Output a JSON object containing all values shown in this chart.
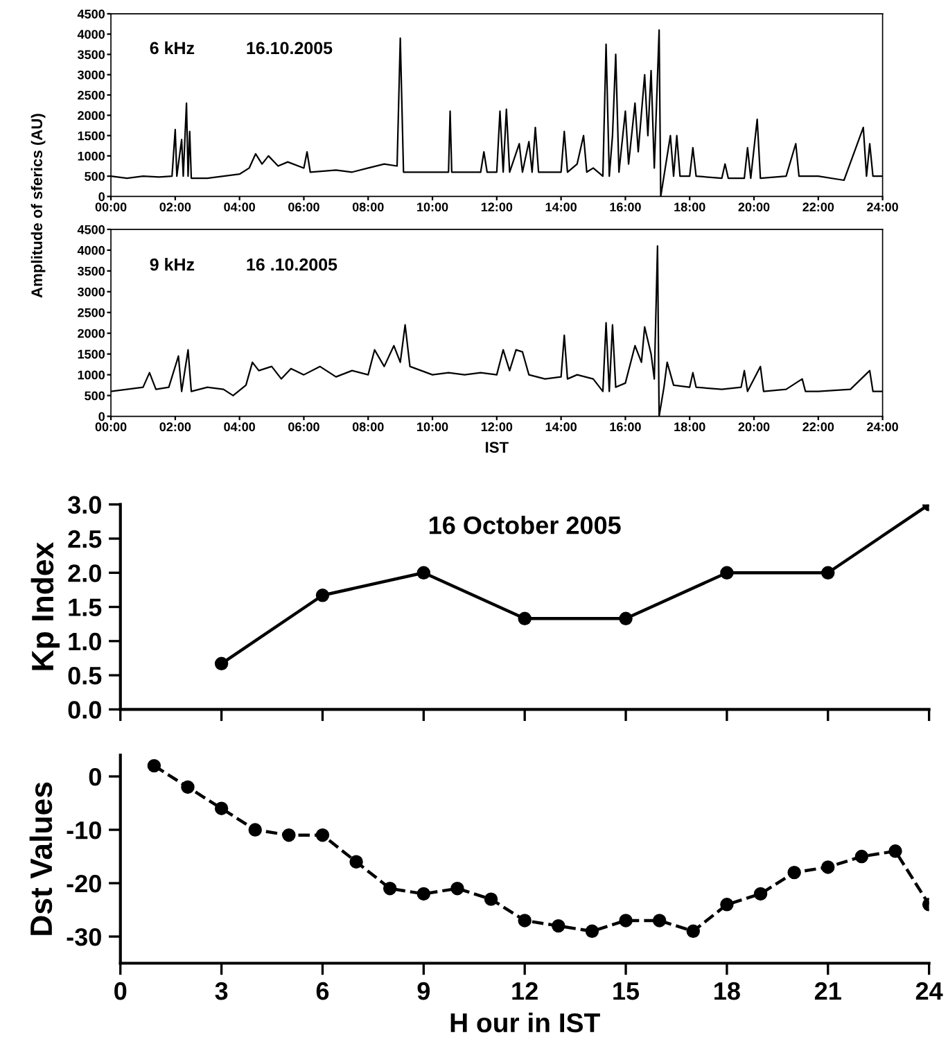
{
  "chart_data": [
    {
      "type": "line",
      "ylabel": "Amplitude of sferics (AU)",
      "annotations": [
        "6 kHz",
        "16.10.2005"
      ],
      "marker": "none",
      "line_style": "solid",
      "color": "#000000",
      "x": [
        "2005-10-16T00:00",
        "2005-10-16T00:30",
        "2005-10-16T01:00",
        "2005-10-16T01:30",
        "2005-10-16T01:54",
        "2005-10-16T02:00",
        "2005-10-16T02:03",
        "2005-10-16T02:12",
        "2005-10-16T02:15",
        "2005-10-16T02:21",
        "2005-10-16T02:24",
        "2005-10-16T02:27",
        "2005-10-16T02:30",
        "2005-10-16T03:00",
        "2005-10-16T03:30",
        "2005-10-16T04:00",
        "2005-10-16T04:18",
        "2005-10-16T04:30",
        "2005-10-16T04:42",
        "2005-10-16T04:54",
        "2005-10-16T05:12",
        "2005-10-16T05:30",
        "2005-10-16T06:00",
        "2005-10-16T06:06",
        "2005-10-16T06:12",
        "2005-10-16T07:00",
        "2005-10-16T07:30",
        "2005-10-16T08:00",
        "2005-10-16T08:30",
        "2005-10-16T08:54",
        "2005-10-16T09:00",
        "2005-10-16T09:06",
        "2005-10-16T10:00",
        "2005-10-16T10:30",
        "2005-10-16T10:33",
        "2005-10-16T10:36",
        "2005-10-16T11:30",
        "2005-10-16T11:36",
        "2005-10-16T11:42",
        "2005-10-16T12:00",
        "2005-10-16T12:06",
        "2005-10-16T12:12",
        "2005-10-16T12:18",
        "2005-10-16T12:24",
        "2005-10-16T12:42",
        "2005-10-16T12:48",
        "2005-10-16T13:00",
        "2005-10-16T13:06",
        "2005-10-16T13:12",
        "2005-10-16T13:18",
        "2005-10-16T14:00",
        "2005-10-16T14:06",
        "2005-10-16T14:12",
        "2005-10-16T14:30",
        "2005-10-16T14:42",
        "2005-10-16T14:48",
        "2005-10-16T15:00",
        "2005-10-16T15:18",
        "2005-10-16T15:24",
        "2005-10-16T15:30",
        "2005-10-16T15:36",
        "2005-10-16T15:42",
        "2005-10-16T15:48",
        "2005-10-16T16:00",
        "2005-10-16T16:06",
        "2005-10-16T16:18",
        "2005-10-16T16:24",
        "2005-10-16T16:36",
        "2005-10-16T16:42",
        "2005-10-16T16:48",
        "2005-10-16T16:54",
        "2005-10-16T17:03",
        "2005-10-16T17:06",
        "2005-10-16T17:12",
        "2005-10-16T17:24",
        "2005-10-16T17:30",
        "2005-10-16T17:36",
        "2005-10-16T17:42",
        "2005-10-16T18:00",
        "2005-10-16T18:06",
        "2005-10-16T18:12",
        "2005-10-16T19:00",
        "2005-10-16T19:06",
        "2005-10-16T19:12",
        "2005-10-16T19:42",
        "2005-10-16T19:48",
        "2005-10-16T19:54",
        "2005-10-16T20:06",
        "2005-10-16T20:12",
        "2005-10-16T21:00",
        "2005-10-16T21:18",
        "2005-10-16T21:24",
        "2005-10-16T22:00",
        "2005-10-16T22:48",
        "2005-10-16T23:24",
        "2005-10-16T23:30",
        "2005-10-16T23:36",
        "2005-10-16T23:42",
        "2005-10-17T00:00"
      ],
      "values": [
        500,
        450,
        500,
        480,
        500,
        1650,
        500,
        1400,
        500,
        2300,
        500,
        1600,
        450,
        450,
        500,
        550,
        700,
        1050,
        800,
        1000,
        750,
        850,
        700,
        1100,
        600,
        650,
        600,
        700,
        800,
        750,
        3900,
        600,
        600,
        600,
        2100,
        600,
        600,
        1100,
        600,
        600,
        2100,
        600,
        2150,
        600,
        1300,
        600,
        1350,
        600,
        1700,
        600,
        600,
        1600,
        600,
        800,
        1500,
        600,
        700,
        500,
        3750,
        500,
        1500,
        3500,
        600,
        2100,
        800,
        2300,
        1100,
        3000,
        1500,
        3100,
        700,
        4100,
        0,
        500,
        1500,
        500,
        1500,
        500,
        500,
        1200,
        500,
        450,
        800,
        450,
        450,
        1200,
        450,
        1900,
        450,
        500,
        1300,
        500,
        500,
        400,
        1700,
        500,
        1300,
        500,
        500
      ],
      "xlim": [
        "2005-10-16T00:00",
        "2005-10-17T00:00"
      ],
      "ylim": [
        0,
        4500
      ],
      "xticks": [
        {
          "value": "2005-10-16T00:00",
          "label": "00:00"
        },
        {
          "value": "2005-10-16T02:00",
          "label": "02:00"
        },
        {
          "value": "2005-10-16T04:00",
          "label": "04:00"
        },
        {
          "value": "2005-10-16T06:00",
          "label": "06:00"
        },
        {
          "value": "2005-10-16T08:00",
          "label": "08:00"
        },
        {
          "value": "2005-10-16T10:00",
          "label": "10:00"
        },
        {
          "value": "2005-10-16T12:00",
          "label": "12:00"
        },
        {
          "value": "2005-10-16T14:00",
          "label": "14:00"
        },
        {
          "value": "2005-10-16T16:00",
          "label": "16:00"
        },
        {
          "value": "2005-10-16T18:00",
          "label": "18:00"
        },
        {
          "value": "2005-10-16T20:00",
          "label": "20:00"
        },
        {
          "value": "2005-10-16T22:00",
          "label": "22:00"
        },
        {
          "value": "2005-10-17T00:00",
          "label": "24:00"
        }
      ],
      "yticks": [
        0,
        500,
        1000,
        1500,
        2000,
        2500,
        3000,
        3500,
        4000,
        4500
      ]
    },
    {
      "type": "line",
      "xlabel": "IST",
      "annotations": [
        "9 kHz",
        "16 .10.2005"
      ],
      "marker": "none",
      "line_style": "solid",
      "color": "#000000",
      "x": [
        "2005-10-16T00:00",
        "2005-10-16T00:30",
        "2005-10-16T01:00",
        "2005-10-16T01:12",
        "2005-10-16T01:24",
        "2005-10-16T01:48",
        "2005-10-16T02:06",
        "2005-10-16T02:12",
        "2005-10-16T02:24",
        "2005-10-16T02:30",
        "2005-10-16T03:00",
        "2005-10-16T03:30",
        "2005-10-16T03:48",
        "2005-10-16T04:12",
        "2005-10-16T04:24",
        "2005-10-16T04:36",
        "2005-10-16T05:00",
        "2005-10-16T05:18",
        "2005-10-16T05:36",
        "2005-10-16T06:00",
        "2005-10-16T06:30",
        "2005-10-16T07:00",
        "2005-10-16T07:30",
        "2005-10-16T08:00",
        "2005-10-16T08:12",
        "2005-10-16T08:30",
        "2005-10-16T08:48",
        "2005-10-16T09:00",
        "2005-10-16T09:09",
        "2005-10-16T09:18",
        "2005-10-16T10:00",
        "2005-10-16T10:30",
        "2005-10-16T11:00",
        "2005-10-16T11:30",
        "2005-10-16T12:00",
        "2005-10-16T12:12",
        "2005-10-16T12:24",
        "2005-10-16T12:36",
        "2005-10-16T12:48",
        "2005-10-16T13:00",
        "2005-10-16T13:30",
        "2005-10-16T14:00",
        "2005-10-16T14:06",
        "2005-10-16T14:12",
        "2005-10-16T14:30",
        "2005-10-16T15:00",
        "2005-10-16T15:18",
        "2005-10-16T15:24",
        "2005-10-16T15:30",
        "2005-10-16T15:36",
        "2005-10-16T15:42",
        "2005-10-16T16:00",
        "2005-10-16T16:18",
        "2005-10-16T16:30",
        "2005-10-16T16:36",
        "2005-10-16T16:48",
        "2005-10-16T16:54",
        "2005-10-16T17:00",
        "2005-10-16T17:03",
        "2005-10-16T17:12",
        "2005-10-16T17:18",
        "2005-10-16T17:30",
        "2005-10-16T18:00",
        "2005-10-16T18:06",
        "2005-10-16T18:12",
        "2005-10-16T19:00",
        "2005-10-16T19:36",
        "2005-10-16T19:42",
        "2005-10-16T19:48",
        "2005-10-16T20:12",
        "2005-10-16T20:18",
        "2005-10-16T21:00",
        "2005-10-16T21:30",
        "2005-10-16T21:36",
        "2005-10-16T22:00",
        "2005-10-16T23:00",
        "2005-10-16T23:36",
        "2005-10-16T23:42",
        "2005-10-17T00:00"
      ],
      "values": [
        600,
        650,
        700,
        1050,
        650,
        700,
        1450,
        600,
        1600,
        600,
        700,
        650,
        500,
        750,
        1300,
        1100,
        1200,
        900,
        1150,
        1000,
        1200,
        950,
        1100,
        1000,
        1600,
        1200,
        1700,
        1300,
        2200,
        1200,
        1000,
        1050,
        1000,
        1050,
        1000,
        1600,
        1100,
        1600,
        1550,
        1000,
        900,
        950,
        1950,
        900,
        1000,
        900,
        600,
        2250,
        600,
        2200,
        700,
        800,
        1700,
        1300,
        2150,
        1500,
        900,
        4100,
        0,
        700,
        1300,
        750,
        700,
        1050,
        700,
        650,
        700,
        1100,
        600,
        1200,
        600,
        650,
        900,
        600,
        600,
        650,
        1100,
        600,
        600
      ],
      "xlim": [
        "2005-10-16T00:00",
        "2005-10-17T00:00"
      ],
      "ylim": [
        0,
        4500
      ],
      "xticks": [
        {
          "value": "2005-10-16T00:00",
          "label": "00:00"
        },
        {
          "value": "2005-10-16T02:00",
          "label": "02:00"
        },
        {
          "value": "2005-10-16T04:00",
          "label": "04:00"
        },
        {
          "value": "2005-10-16T06:00",
          "label": "06:00"
        },
        {
          "value": "2005-10-16T08:00",
          "label": "08:00"
        },
        {
          "value": "2005-10-16T10:00",
          "label": "10:00"
        },
        {
          "value": "2005-10-16T12:00",
          "label": "12:00"
        },
        {
          "value": "2005-10-16T14:00",
          "label": "14:00"
        },
        {
          "value": "2005-10-16T16:00",
          "label": "16:00"
        },
        {
          "value": "2005-10-16T18:00",
          "label": "18:00"
        },
        {
          "value": "2005-10-16T20:00",
          "label": "20:00"
        },
        {
          "value": "2005-10-16T22:00",
          "label": "22:00"
        },
        {
          "value": "2005-10-17T00:00",
          "label": "24:00"
        }
      ],
      "yticks": [
        0,
        500,
        1000,
        1500,
        2000,
        2500,
        3000,
        3500,
        4000,
        4500
      ]
    },
    {
      "type": "line",
      "title": "16 October 2005",
      "ylabel": "Kp Index",
      "marker": "circle",
      "line_style": "solid",
      "color": "#000000",
      "tick_labels": "y",
      "x": [
        3,
        6,
        9,
        12,
        15,
        18,
        21,
        24
      ],
      "values": [
        0.67,
        1.67,
        2.0,
        1.33,
        1.33,
        2.0,
        2.0,
        3.0
      ],
      "xlim": [
        0,
        24
      ],
      "ylim": [
        0,
        3
      ],
      "xticks": [
        {
          "value": 0,
          "label": null
        },
        {
          "value": 3,
          "label": null
        },
        {
          "value": 6,
          "label": null
        },
        {
          "value": 9,
          "label": null
        },
        {
          "value": 12,
          "label": null
        },
        {
          "value": 15,
          "label": null
        },
        {
          "value": 18,
          "label": null
        },
        {
          "value": 21,
          "label": null
        },
        {
          "value": 24,
          "label": null
        }
      ],
      "yticks": [
        {
          "value": 0,
          "label": "0.0"
        },
        {
          "value": 0.5,
          "label": "0.5"
        },
        {
          "value": 1,
          "label": "1.0"
        },
        {
          "value": 1.5,
          "label": "1.5"
        },
        {
          "value": 2,
          "label": "2.0"
        },
        {
          "value": 2.5,
          "label": "2.5"
        },
        {
          "value": 3,
          "label": "3.0"
        }
      ]
    },
    {
      "type": "line",
      "xlabel": "H our in IST",
      "ylabel": "Dst Values",
      "marker": "circle",
      "line_style": "dashed",
      "color": "#000000",
      "x": [
        1,
        2,
        3,
        4,
        5,
        6,
        7,
        8,
        9,
        10,
        11,
        12,
        13,
        14,
        15,
        16,
        17,
        18,
        19,
        20,
        21,
        22,
        23,
        24
      ],
      "values": [
        2,
        -2,
        -6,
        -10,
        -11,
        -11,
        -16,
        -21,
        -22,
        -21,
        -23,
        -27,
        -28,
        -29,
        -27,
        -27,
        -29,
        -24,
        -22,
        -18,
        -17,
        -15,
        -14,
        -24
      ],
      "xlim": [
        0,
        24
      ],
      "ylim": [
        -35,
        4
      ],
      "xticks": [
        0,
        3,
        6,
        9,
        12,
        15,
        18,
        21,
        24
      ],
      "yticks": [
        0,
        -10,
        -20,
        -30
      ]
    }
  ]
}
